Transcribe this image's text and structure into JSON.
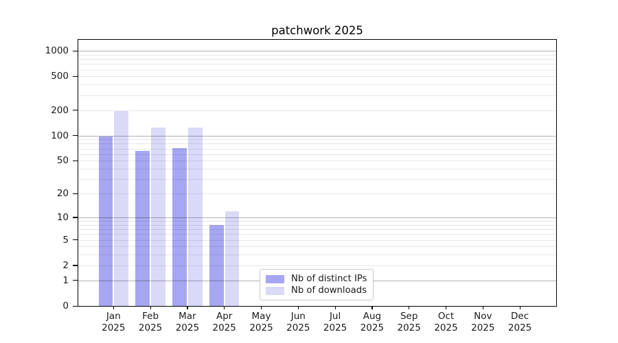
{
  "window": {
    "background": "#ffffff"
  },
  "chart_data": {
    "type": "bar",
    "title": "patchwork 2025",
    "x_categories": [
      "Jan",
      "Feb",
      "Mar",
      "Apr",
      "May",
      "Jun",
      "Jul",
      "Aug",
      "Sep",
      "Oct",
      "Nov",
      "Dec"
    ],
    "x_category_year": "2025",
    "series": [
      {
        "name": "Nb of distinct IPs",
        "color": "#a6a6f2",
        "values": [
          98,
          65,
          71,
          8,
          0,
          0,
          0,
          0,
          0,
          0,
          0,
          0
        ]
      },
      {
        "name": "Nb of downloads",
        "color": "#d9d9f8",
        "values": [
          196,
          124,
          124,
          12,
          0,
          0,
          0,
          0,
          0,
          0,
          0,
          0
        ]
      }
    ],
    "y_scale": "log1p",
    "ylim": [
      0,
      1350
    ],
    "y_axis_ticks": [
      0,
      1,
      2,
      5,
      10,
      20,
      50,
      100,
      200,
      500,
      1000
    ],
    "y_major_gridlines": [
      1,
      10,
      100,
      1000
    ],
    "y_minor_gridlines": [
      2,
      3,
      4,
      5,
      6,
      7,
      8,
      9,
      20,
      30,
      40,
      50,
      60,
      70,
      80,
      90,
      200,
      300,
      400,
      500,
      600,
      700,
      800,
      900
    ],
    "grid": "both",
    "legend_position": "lower-center",
    "colors": {
      "bar_distinct_ips": "#a6a6f2",
      "bar_downloads": "#d9d9f8",
      "major_grid": "rgba(0,0,0,0.30)",
      "minor_grid": "rgba(0,0,0,0.09)",
      "axis": "#000000",
      "text": "#1a1a1a"
    }
  }
}
